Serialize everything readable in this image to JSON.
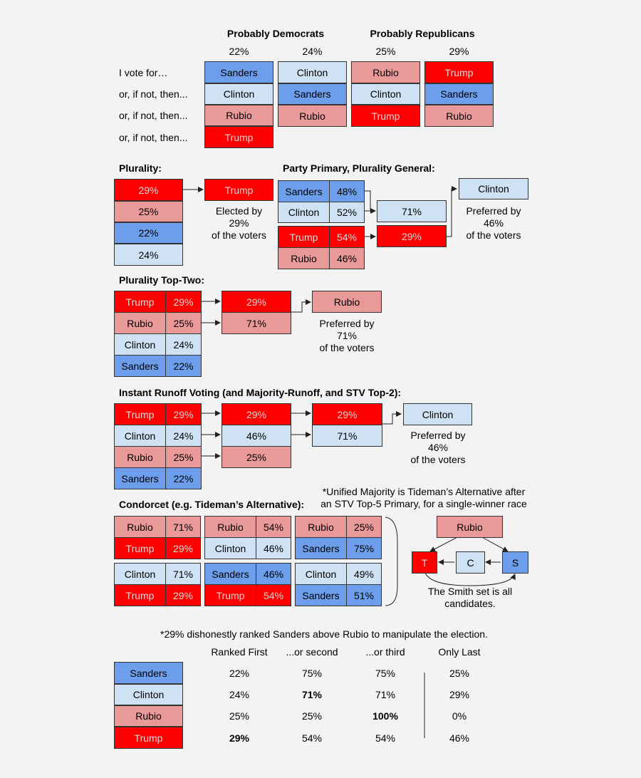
{
  "colors": {
    "sanders": "#6d9eeb",
    "clinton": "#cfe2f3",
    "rubio": "#ea9999",
    "trump": "#ff0000",
    "background": "#f3f3f3"
  },
  "candidates": {
    "sanders": "Sanders",
    "clinton": "Clinton",
    "rubio": "Rubio",
    "trump": "Trump",
    "t": "T",
    "c": "C",
    "s": "S"
  },
  "header": {
    "dem_label": "Probably Democrats",
    "rep_label": "Probably Republicans",
    "shares": [
      "22%",
      "24%",
      "25%",
      "29%"
    ],
    "row_labels": [
      "I vote for…",
      "or, if not, then...",
      "or, if not, then...",
      "or, if not, then..."
    ]
  },
  "plurality": {
    "title": "Plurality:",
    "values": [
      "29%",
      "25%",
      "22%",
      "24%"
    ],
    "note": [
      "Elected by",
      "29%",
      "of the voters"
    ]
  },
  "party_primary": {
    "title": "Party Primary, Plurality General:",
    "values": [
      "48%",
      "52%",
      "54%",
      "46%"
    ],
    "general": [
      "71%",
      "29%"
    ],
    "note": [
      "Preferred by",
      "46%",
      "of the voters"
    ]
  },
  "top_two": {
    "title": "Plurality Top-Two:",
    "values": [
      "29%",
      "25%",
      "24%",
      "22%"
    ],
    "runoff": [
      "29%",
      "71%"
    ],
    "note": [
      "Preferred by",
      "71%",
      "of the voters"
    ]
  },
  "irv": {
    "title": "Instant Runoff Voting (and Majority-Runoff, and STV Top-2):",
    "values": [
      "29%",
      "24%",
      "25%",
      "22%"
    ],
    "round2": [
      "29%",
      "46%",
      "25%"
    ],
    "round3": [
      "29%",
      "71%"
    ],
    "note": [
      "Preferred by",
      "46%",
      "of the voters"
    ]
  },
  "condorcet": {
    "title": "Condorcet (e.g. Tideman’s Alternative):",
    "footnote": [
      "*Unified Majority is Tideman’s Alternative after",
      "an STV Top-5 Primary, for a single-winner race"
    ],
    "pairs": [
      [
        "71%",
        "29%"
      ],
      [
        "54%",
        "46%"
      ],
      [
        "25%",
        "75%"
      ],
      [
        "71%",
        "29%"
      ],
      [
        "46%",
        "54%"
      ],
      [
        "49%",
        "51%"
      ]
    ],
    "smith_note": [
      "The Smith set is all",
      "candidates."
    ]
  },
  "rank_table": {
    "note": "*29% dishonestly ranked Sanders above Rubio to manipulate the election.",
    "headers": [
      "Ranked First",
      "...or second",
      "...or third",
      "Only Last"
    ],
    "rows": [
      [
        "22%",
        "75%",
        "75%",
        "25%"
      ],
      [
        "24%",
        "71%",
        "71%",
        "29%"
      ],
      [
        "25%",
        "25%",
        "100%",
        "0%"
      ],
      [
        "29%",
        "54%",
        "54%",
        "46%"
      ]
    ]
  }
}
